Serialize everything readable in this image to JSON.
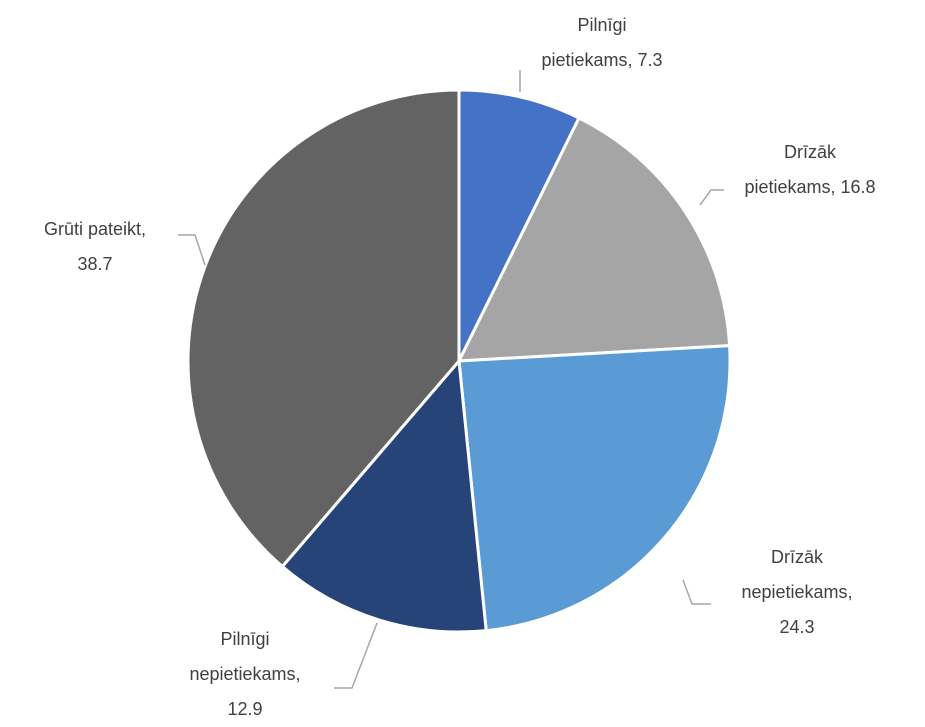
{
  "chart_data": {
    "type": "pie",
    "categories": [
      "Pilnīgi pietiekams",
      "Drīzāk pietiekams",
      "Drīzāk nepietiekams",
      "Pilnīgi nepietiekams",
      "Grūti pateikt"
    ],
    "values": [
      7.3,
      16.8,
      24.3,
      12.9,
      38.7
    ],
    "colors": [
      "#4472c4",
      "#a5a5a5",
      "#5b9bd5",
      "#264478",
      "#636363"
    ],
    "label_separator": ", "
  }
}
